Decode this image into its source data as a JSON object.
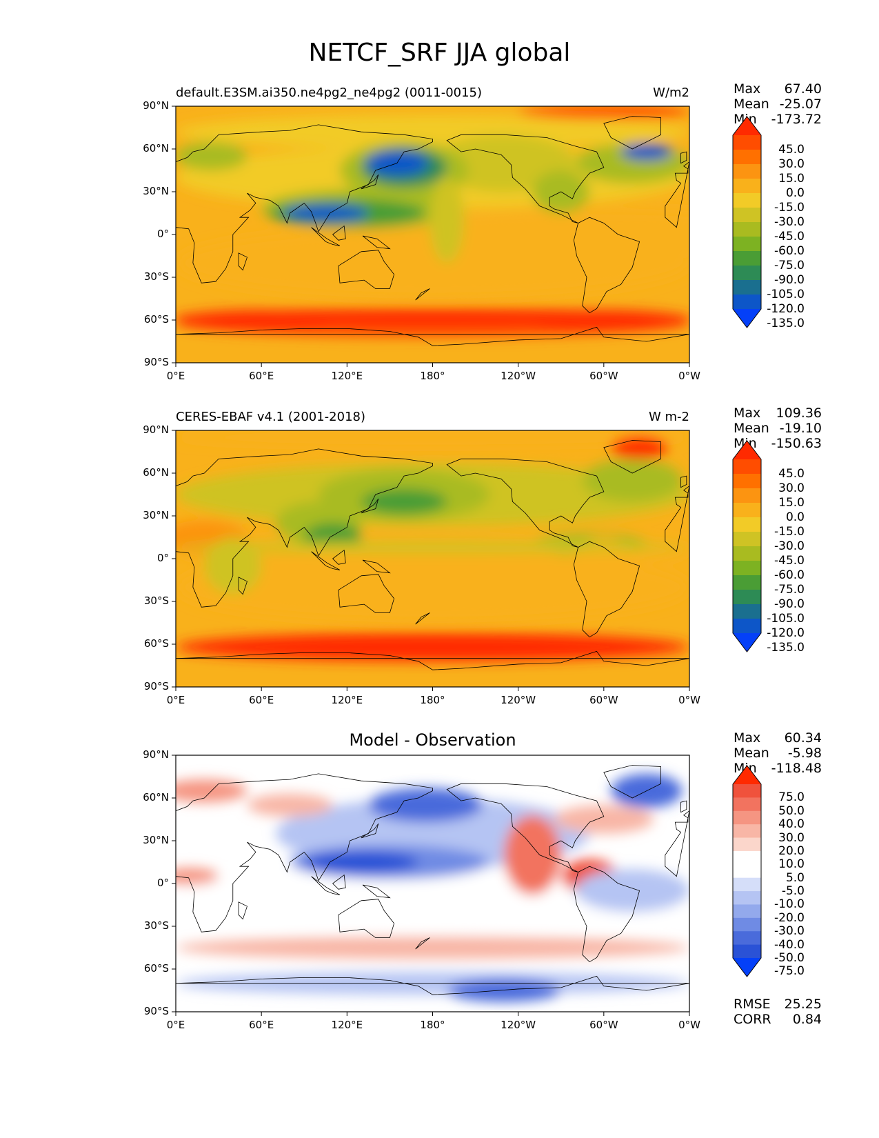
{
  "title": "NETCF_SRF JJA global",
  "lat_ticks": [
    "90°N",
    "60°N",
    "30°N",
    "0°",
    "30°S",
    "60°S",
    "90°S"
  ],
  "lon_ticks": [
    "0°E",
    "60°E",
    "120°E",
    "180°",
    "120°W",
    "60°W",
    "0°W"
  ],
  "chart_data": [
    {
      "type": "map",
      "left_title": "default.E3SM.ai350.ne4pg2_ne4pg2 (0011-0015)",
      "units": "W/m2",
      "center_title": "",
      "stats": [
        {
          "label": "Max",
          "value": "67.40"
        },
        {
          "label": "Mean",
          "value": "-25.07"
        },
        {
          "label": "Min",
          "value": "-173.72"
        }
      ],
      "colorbar": {
        "labels": [
          "45.0",
          "30.0",
          "15.0",
          "0.0",
          "-15.0",
          "-30.0",
          "-45.0",
          "-60.0",
          "-75.0",
          "-90.0",
          "-105.0",
          "-120.0",
          "-135.0"
        ],
        "colors": [
          "#ff2a00",
          "#ff4d00",
          "#ff7000",
          "#fc9411",
          "#f9b11b",
          "#f2cb27",
          "#cfc324",
          "#a9bb20",
          "#7db222",
          "#4a9d35",
          "#2d8b55",
          "#1a6f8f",
          "#0d56c8",
          "#0440f8"
        ]
      },
      "footer": []
    },
    {
      "type": "map",
      "left_title": "CERES-EBAF v4.1 (2001-2018)",
      "units": "W m-2",
      "center_title": "",
      "stats": [
        {
          "label": "Max",
          "value": "109.36"
        },
        {
          "label": "Mean",
          "value": "-19.10"
        },
        {
          "label": "Min",
          "value": "-150.63"
        }
      ],
      "colorbar": {
        "labels": [
          "45.0",
          "30.0",
          "15.0",
          "0.0",
          "-15.0",
          "-30.0",
          "-45.0",
          "-60.0",
          "-75.0",
          "-90.0",
          "-105.0",
          "-120.0",
          "-135.0"
        ],
        "colors": [
          "#ff2a00",
          "#ff4d00",
          "#ff7000",
          "#fc9411",
          "#f9b11b",
          "#f2cb27",
          "#cfc324",
          "#a9bb20",
          "#7db222",
          "#4a9d35",
          "#2d8b55",
          "#1a6f8f",
          "#0d56c8",
          "#0440f8"
        ]
      },
      "footer": []
    },
    {
      "type": "map",
      "left_title": "",
      "units": "",
      "center_title": "Model - Observation",
      "stats": [
        {
          "label": "Max",
          "value": "60.34"
        },
        {
          "label": "Mean",
          "value": "-5.98"
        },
        {
          "label": "Min",
          "value": "-118.48"
        }
      ],
      "colorbar": {
        "labels": [
          "75.0",
          "50.0",
          "40.0",
          "30.0",
          "20.0",
          "10.0",
          "5.0",
          "-5.0",
          "-10.0",
          "-20.0",
          "-30.0",
          "-40.0",
          "-50.0",
          "-75.0"
        ],
        "colors": [
          "#ff2a00",
          "#f0523c",
          "#f2735f",
          "#f59582",
          "#f8b6a6",
          "#fbd6cb",
          "#ffffff",
          "#ffffff",
          "#d5def9",
          "#b5c4f3",
          "#93a9ec",
          "#6f8be4",
          "#4a6bdb",
          "#2a52d6",
          "#0440f8"
        ]
      },
      "footer": [
        {
          "label": "RMSE",
          "value": "25.25"
        },
        {
          "label": "CORR",
          "value": "0.84"
        }
      ]
    }
  ]
}
